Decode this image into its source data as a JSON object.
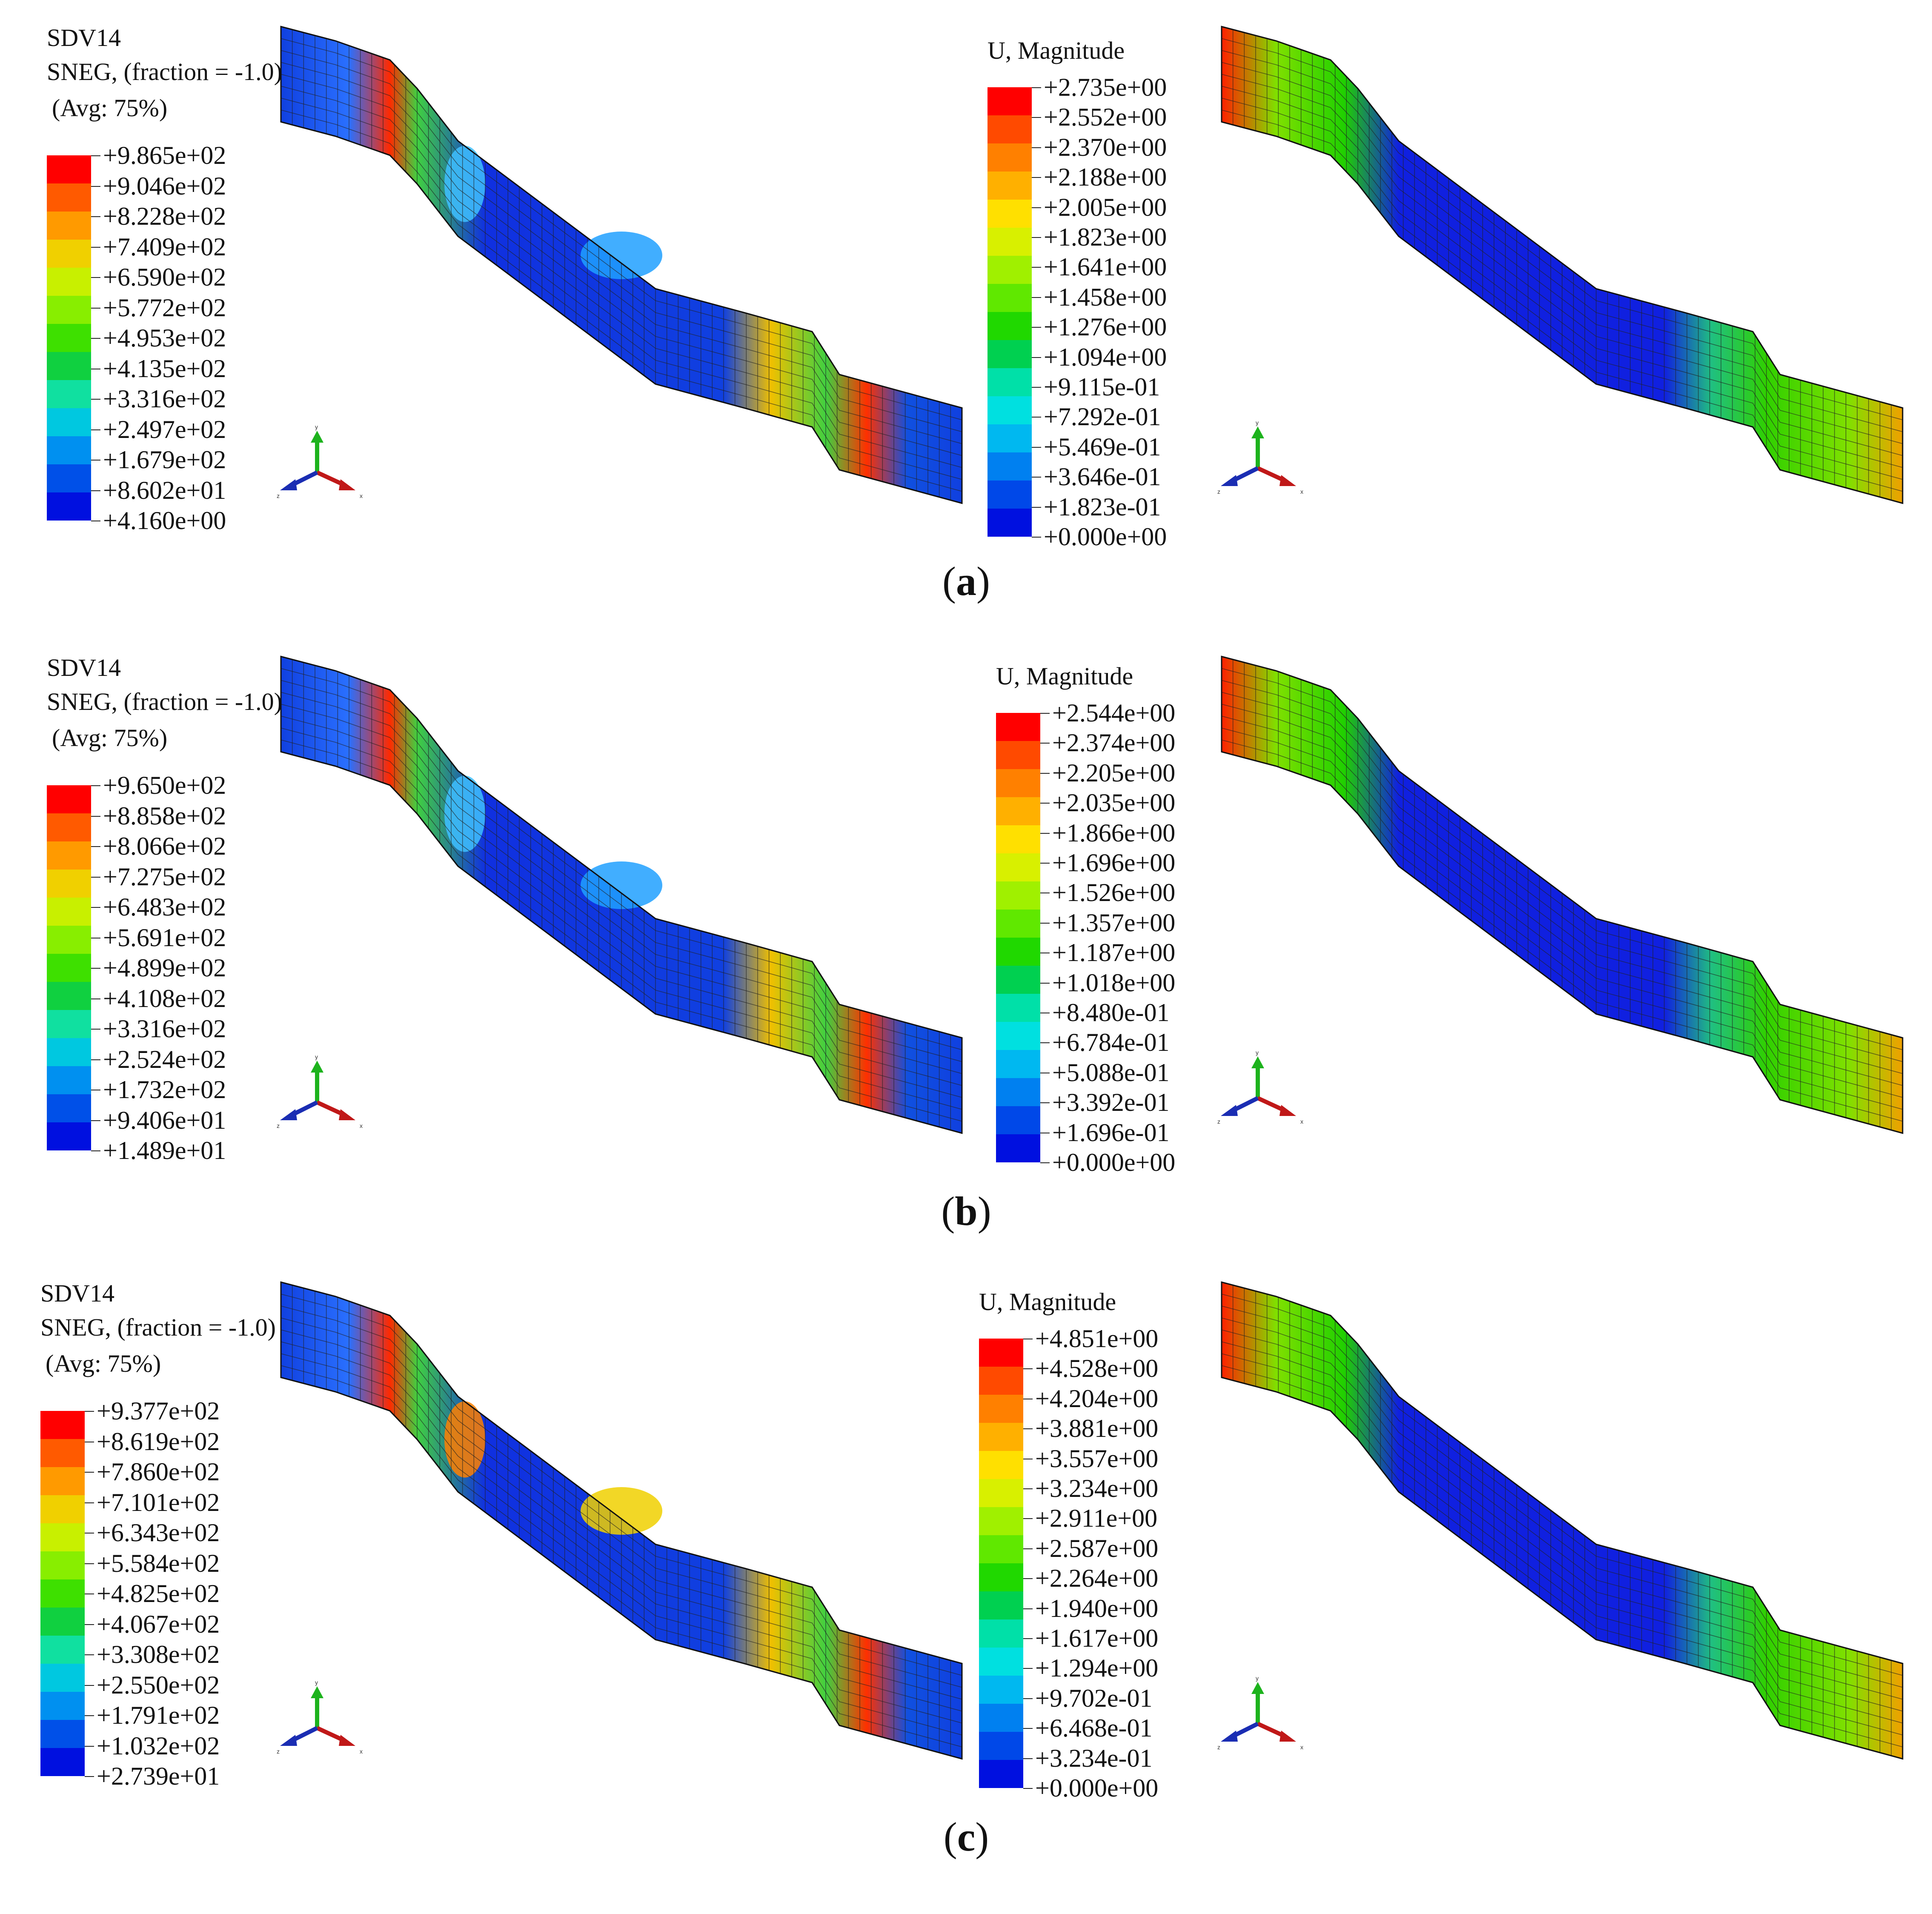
{
  "captions": [
    "a",
    "b",
    "c"
  ],
  "panels": [
    {
      "id": "a",
      "stress": {
        "title": "SDV14",
        "subtitle": "SNEG, (fraction = -1.0)",
        "avg": "(Avg: 75%)",
        "values": [
          "+9.865e+02",
          "+9.046e+02",
          "+8.228e+02",
          "+7.409e+02",
          "+6.590e+02",
          "+5.772e+02",
          "+4.953e+02",
          "+4.135e+02",
          "+3.316e+02",
          "+2.497e+02",
          "+1.679e+02",
          "+8.602e+01",
          "+4.160e+00"
        ]
      },
      "displacement": {
        "title": "U, Magnitude",
        "values": [
          "+2.735e+00",
          "+2.552e+00",
          "+2.370e+00",
          "+2.188e+00",
          "+2.005e+00",
          "+1.823e+00",
          "+1.641e+00",
          "+1.458e+00",
          "+1.276e+00",
          "+1.094e+00",
          "+9.115e-01",
          "+7.292e-01",
          "+5.469e-01",
          "+3.646e-01",
          "+1.823e-01",
          "+0.000e+00"
        ]
      }
    },
    {
      "id": "b",
      "stress": {
        "title": "SDV14",
        "subtitle": "SNEG, (fraction = -1.0)",
        "avg": "(Avg: 75%)",
        "values": [
          "+9.650e+02",
          "+8.858e+02",
          "+8.066e+02",
          "+7.275e+02",
          "+6.483e+02",
          "+5.691e+02",
          "+4.899e+02",
          "+4.108e+02",
          "+3.316e+02",
          "+2.524e+02",
          "+1.732e+02",
          "+9.406e+01",
          "+1.489e+01"
        ]
      },
      "displacement": {
        "title": "U, Magnitude",
        "values": [
          "+2.544e+00",
          "+2.374e+00",
          "+2.205e+00",
          "+2.035e+00",
          "+1.866e+00",
          "+1.696e+00",
          "+1.526e+00",
          "+1.357e+00",
          "+1.187e+00",
          "+1.018e+00",
          "+8.480e-01",
          "+6.784e-01",
          "+5.088e-01",
          "+3.392e-01",
          "+1.696e-01",
          "+0.000e+00"
        ]
      }
    },
    {
      "id": "c",
      "stress": {
        "title": "SDV14",
        "subtitle": "SNEG, (fraction = -1.0)",
        "avg": "(Avg: 75%)",
        "values": [
          "+9.377e+02",
          "+8.619e+02",
          "+7.860e+02",
          "+7.101e+02",
          "+6.343e+02",
          "+5.584e+02",
          "+4.825e+02",
          "+4.067e+02",
          "+3.308e+02",
          "+2.550e+02",
          "+1.791e+02",
          "+1.032e+02",
          "+2.739e+01"
        ]
      },
      "displacement": {
        "title": "U, Magnitude",
        "values": [
          "+4.851e+00",
          "+4.528e+00",
          "+4.204e+00",
          "+3.881e+00",
          "+3.557e+00",
          "+3.234e+00",
          "+2.911e+00",
          "+2.587e+00",
          "+2.264e+00",
          "+1.940e+00",
          "+1.617e+00",
          "+1.294e+00",
          "+9.702e-01",
          "+6.468e-01",
          "+3.234e-01",
          "+0.000e+00"
        ]
      }
    }
  ],
  "stress_colors": [
    "#ff0000",
    "#ff5a00",
    "#ff9a00",
    "#f0d000",
    "#c8f000",
    "#88ee00",
    "#3ee000",
    "#10d040",
    "#10e0a0",
    "#00c8e0",
    "#0090f0",
    "#0050e8",
    "#0010e0"
  ],
  "displacement_colors": [
    "#ff0000",
    "#ff4a00",
    "#ff8000",
    "#ffb000",
    "#ffe000",
    "#d8f000",
    "#a0f000",
    "#60e800",
    "#20d800",
    "#00d050",
    "#00e0a8",
    "#00e0e0",
    "#00b8f0",
    "#0080f0",
    "#0048e8",
    "#0010e0"
  ],
  "triad": {
    "x": "x",
    "y": "y",
    "z": "z"
  }
}
